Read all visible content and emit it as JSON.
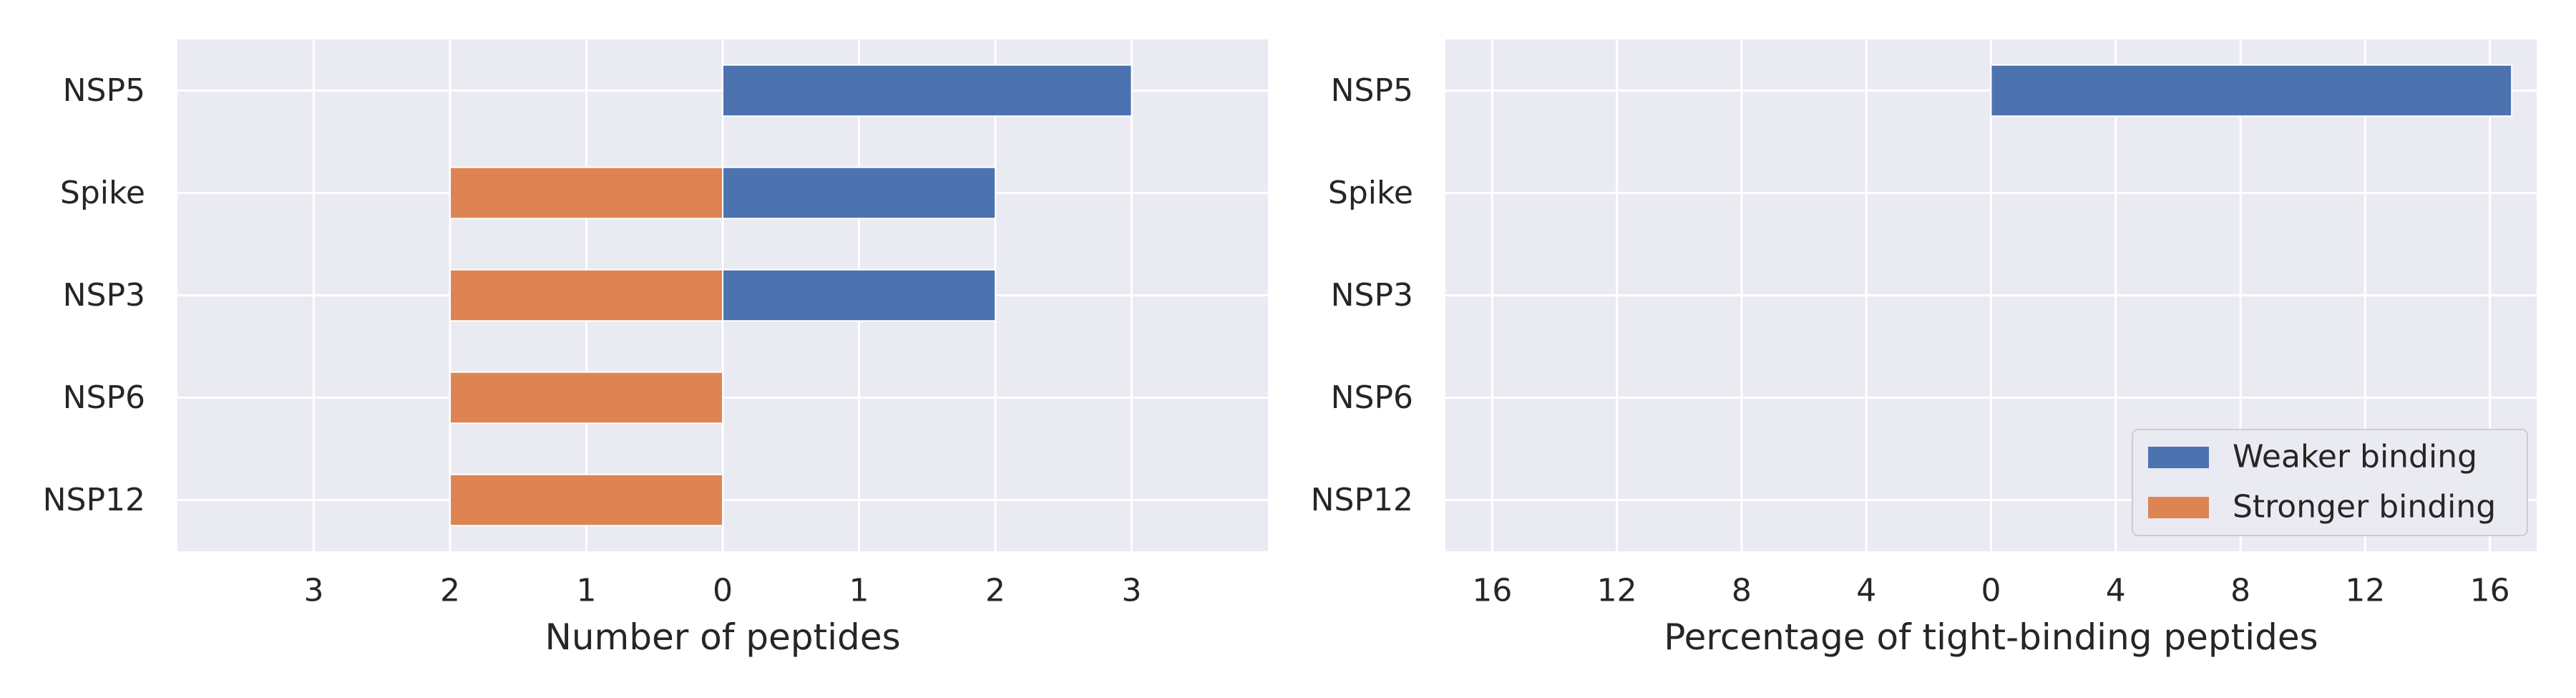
{
  "chart_data": [
    {
      "type": "bar",
      "orientation": "horizontal-diverging",
      "categories": [
        "NSP5",
        "Spike",
        "NSP3",
        "NSP6",
        "NSP12"
      ],
      "series": [
        {
          "name": "Weaker binding",
          "values": [
            3,
            2,
            2,
            0,
            0
          ],
          "color": "#4c72b0"
        },
        {
          "name": "Stronger binding",
          "values": [
            0,
            2,
            2,
            2,
            2
          ],
          "color": "#dd8452"
        }
      ],
      "xlabel": "Number of peptides",
      "xlim": [
        -4,
        4
      ],
      "xticks": [
        -3,
        -2,
        -1,
        0,
        1,
        2,
        3
      ],
      "xtick_labels": [
        "3",
        "2",
        "1",
        "0",
        "1",
        "2",
        "3"
      ],
      "grid": true
    },
    {
      "type": "bar",
      "orientation": "horizontal-diverging",
      "categories": [
        "NSP5",
        "Spike",
        "NSP3",
        "NSP6",
        "NSP12"
      ],
      "series": [
        {
          "name": "Weaker binding",
          "values": [
            16.7,
            0,
            0,
            0,
            0
          ],
          "color": "#4c72b0"
        },
        {
          "name": "Stronger binding",
          "values": [
            0,
            0,
            0,
            0,
            0
          ],
          "color": "#dd8452"
        }
      ],
      "xlabel": "Percentage of tight-binding peptides",
      "xlim": [
        -17.5,
        17.5
      ],
      "xticks": [
        -16,
        -12,
        -8,
        -4,
        0,
        4,
        8,
        12,
        16
      ],
      "xtick_labels": [
        "16",
        "12",
        "8",
        "4",
        "0",
        "4",
        "8",
        "12",
        "16"
      ],
      "legend": {
        "position": "lower-right",
        "entries": [
          "Weaker binding",
          "Stronger binding"
        ]
      },
      "grid": true
    }
  ]
}
